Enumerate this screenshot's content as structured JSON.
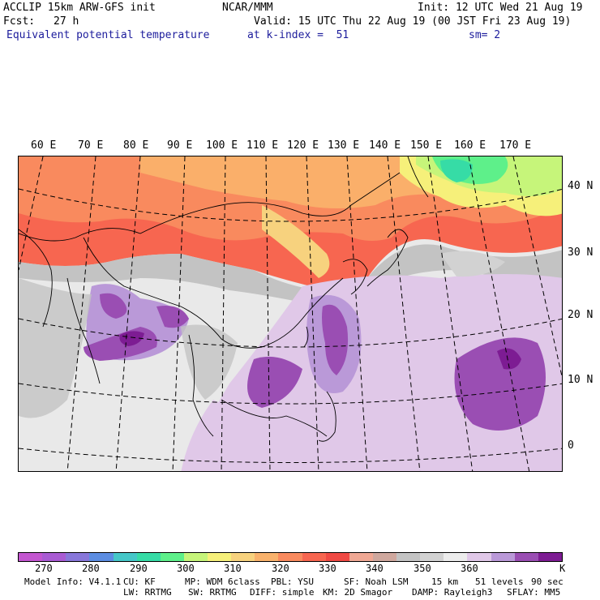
{
  "header": {
    "model": "ACCLIP 15km ARW-GFS init",
    "center": "NCAR/MMM",
    "init": "Init: 12 UTC Wed 21 Aug 19",
    "fcst_label": "Fcst:",
    "fcst_value": "27 h",
    "valid": "Valid: 15 UTC Thu 22 Aug 19 (00 JST Fri 23 Aug 19)",
    "field": "Equivalent potential temperature",
    "level": "at k-index =  51",
    "smoothing": "sm= 2"
  },
  "map": {
    "lon_labels": [
      "60 E",
      "70 E",
      "80 E",
      "90 E",
      "100 E",
      "110 E",
      "120 E",
      "130 E",
      "140 E",
      "150 E",
      "160 E",
      "170 E"
    ],
    "lat_labels": [
      "40 N",
      "30 N",
      "20 N",
      "10 N",
      "0"
    ]
  },
  "colorbar": {
    "colors": [
      "#c356d0",
      "#a95bd3",
      "#8877da",
      "#5c8de2",
      "#45c7c8",
      "#36dca6",
      "#5ef08a",
      "#c6f57a",
      "#f6f07a",
      "#f7d27e",
      "#f9b26c",
      "#f98a5e",
      "#f76650",
      "#f04a44",
      "#f0a894",
      "#cfa89e",
      "#c3c3c3",
      "#d2d2d2",
      "#ececec",
      "#e0c8e8",
      "#ba99d8",
      "#9a4eb3",
      "#7d1c93"
    ],
    "labels": [
      "270",
      "280",
      "290",
      "300",
      "310",
      "320",
      "330",
      "340",
      "350",
      "360"
    ],
    "unit": "K"
  },
  "footer": {
    "line1": [
      "Model Info: V4.1.1",
      "CU: KF",
      "MP: WDM 6class",
      "PBL: YSU",
      "SF: Noah LSM",
      "15 km",
      "51 levels",
      "90 sec"
    ],
    "line2": [
      "LW: RRTMG",
      "SW: RRTMG",
      "DIFF: simple",
      "KM: 2D Smagor",
      "DAMP: Rayleigh3",
      "SFLAY: MM5"
    ]
  }
}
